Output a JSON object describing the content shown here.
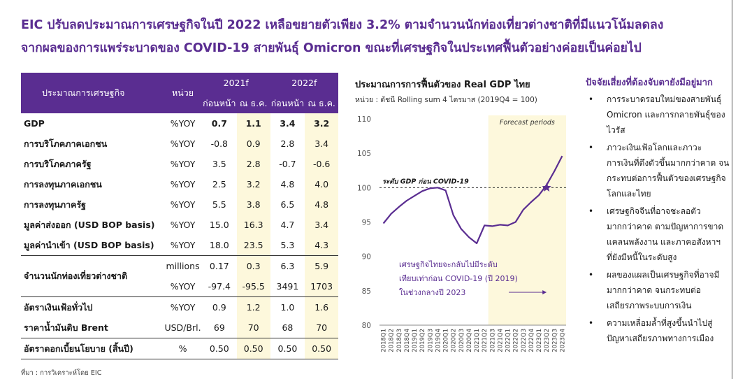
{
  "headline": {
    "line1": "EIC ปรับลดประมาณการเศรษฐกิจในปี 2022 เหลือขยายตัวเพียง 3.2% ตามจำนวนนักท่องเที่ยวต่างชาติที่มีแนวโน้มลดลง",
    "line2": "จากผลของการแพร่ระบาดของ COVID-19 สายพันธุ์ Omicron ขณะที่เศรษฐกิจในประเทศฟื้นตัวอย่างค่อยเป็นค่อยไป"
  },
  "table": {
    "header": {
      "label": "ประมาณการเศรษฐกิจ",
      "unit": "หน่วย",
      "y2021": "2021f",
      "y2022": "2022f",
      "prev": "ก่อนหน้า",
      "dec": "ณ ธ.ค."
    },
    "rows": [
      {
        "label": "GDP",
        "unit": "%YOY",
        "v": [
          "0.7",
          "1.1",
          "3.4",
          "3.2"
        ]
      },
      {
        "label": "การบริโภคภาคเอกชน",
        "unit": "%YOY",
        "v": [
          "-0.8",
          "0.9",
          "2.8",
          "3.4"
        ]
      },
      {
        "label": "การบริโภคภาครัฐ",
        "unit": "%YOY",
        "v": [
          "3.5",
          "2.8",
          "-0.7",
          "-0.6"
        ]
      },
      {
        "label": "การลงทุนภาคเอกชน",
        "unit": "%YOY",
        "v": [
          "2.5",
          "3.2",
          "4.8",
          "4.0"
        ]
      },
      {
        "label": "การลงทุนภาครัฐ",
        "unit": "%YOY",
        "v": [
          "5.5",
          "3.8",
          "6.5",
          "4.8"
        ]
      },
      {
        "label": "มูลค่าส่งออก (USD BOP basis)",
        "unit": "%YOY",
        "v": [
          "15.0",
          "16.3",
          "4.7",
          "3.4"
        ]
      },
      {
        "label": "มูลค่านำเข้า (USD BOP basis)",
        "unit": "%YOY",
        "v": [
          "18.0",
          "23.5",
          "5.3",
          "4.3"
        ]
      }
    ],
    "tourists": {
      "label": "จำนวนนักท่องเที่ยวต่างชาติ",
      "rows": [
        {
          "unit": "millions",
          "v": [
            "0.17",
            "0.3",
            "6.3",
            "5.9"
          ]
        },
        {
          "unit": "%YOY",
          "v": [
            "-97.4",
            "-95.5",
            "3491",
            "1703"
          ]
        }
      ]
    },
    "rows2": [
      {
        "label": "อัตราเงินเฟ้อทั่วไป",
        "unit": "%YOY",
        "v": [
          "0.9",
          "1.2",
          "1.0",
          "1.6"
        ]
      },
      {
        "label": "ราคาน้ำมันดิบ Brent",
        "unit": "USD/Brl.",
        "v": [
          "69",
          "70",
          "68",
          "70"
        ]
      }
    ],
    "policy": {
      "label": "อัตราดอกเบี้ยนโยบาย (สิ้นปี)",
      "unit": "%",
      "v": [
        "0.50",
        "0.50",
        "0.50",
        "0.50"
      ]
    }
  },
  "source": "ที่มา : การวิเคราะห์โดย EIC",
  "chart_data": {
    "type": "line",
    "title": "ประมาณการการฟื้นตัวของ Real GDP ไทย",
    "subtitle": "หน่วย : ดัชนี Rolling sum 4 ไตรมาส (2019Q4 = 100)",
    "categories": [
      "2018Q1",
      "2018Q2",
      "2018Q3",
      "2018Q4",
      "2019Q1",
      "2019Q2",
      "2019Q3",
      "2019Q4",
      "2020Q1",
      "2020Q2",
      "2020Q3",
      "2020Q4",
      "2021Q1",
      "2021Q2",
      "2021Q3",
      "2021Q4",
      "2022Q1",
      "2022Q2",
      "2022Q3",
      "2022Q4",
      "2023Q1",
      "2023Q2",
      "2023Q3",
      "2023Q4"
    ],
    "series": [
      {
        "values": [
          94.8,
          96.2,
          97.2,
          98.1,
          98.8,
          99.5,
          99.9,
          100.0,
          99.6,
          96.0,
          94.0,
          92.8,
          91.9,
          94.5,
          94.4,
          94.6,
          94.5,
          95.0,
          96.8,
          97.9,
          98.9,
          100.4,
          102.4,
          104.6
        ]
      }
    ],
    "ylim": [
      80,
      110
    ],
    "yticks": [
      80,
      85,
      90,
      95,
      100,
      105,
      110
    ],
    "reference_line": {
      "value": 100,
      "label": "ระดับ GDP ก่อน COVID-19"
    },
    "forecast_band": {
      "from": "2021Q3",
      "to": "2023Q4",
      "label": "Forecast periods",
      "color": "#fdf8dc"
    },
    "marker": {
      "at": "2023Q2",
      "value": 100
    },
    "annotation": {
      "lines": [
        "เศรษฐกิจไทยจะกลับไปมีระดับ",
        "เทียบเท่าก่อน COVID-19 (ปี 2019)",
        "ในช่วงกลางปี 2023"
      ],
      "color": "#5a2d91"
    },
    "line_color": "#5a2d91",
    "grid": false
  },
  "risks": {
    "title": "ปัจจัยเสี่ยงที่ต้องจับตายังมีอยู่มาก",
    "items": [
      [
        "การระบาดรอบใหม่ของสายพันธุ์",
        "Omicron และการกลายพันธุ์ของ",
        "ไวรัส"
      ],
      [
        "ภาวะเงินเฟ้อโลกและภาวะ",
        "การเงินที่ตึงตัวขึ้นมากกว่าคาด จน",
        "กระทบต่อการฟื้นตัวของเศรษฐกิจ",
        "โลกและไทย"
      ],
      [
        "เศรษฐกิจจีนที่อาจชะลอตัว",
        "มากกว่าคาด ตามปัญหาการขาด",
        "แคลนพลังงาน และภาคอสังหาฯ",
        "ที่ยังมีหนี้ในระดับสูง"
      ],
      [
        "ผลของแผลเป็นเศรษฐกิจที่อาจมี",
        "มากกว่าคาด จนกระทบต่อ",
        "เสถียรภาพระบบการเงิน"
      ],
      [
        "ความเหลื่อมล้ำที่สูงขึ้นนำไปสู่",
        "ปัญหาเสถียรภาพทางการเมือง"
      ]
    ]
  }
}
